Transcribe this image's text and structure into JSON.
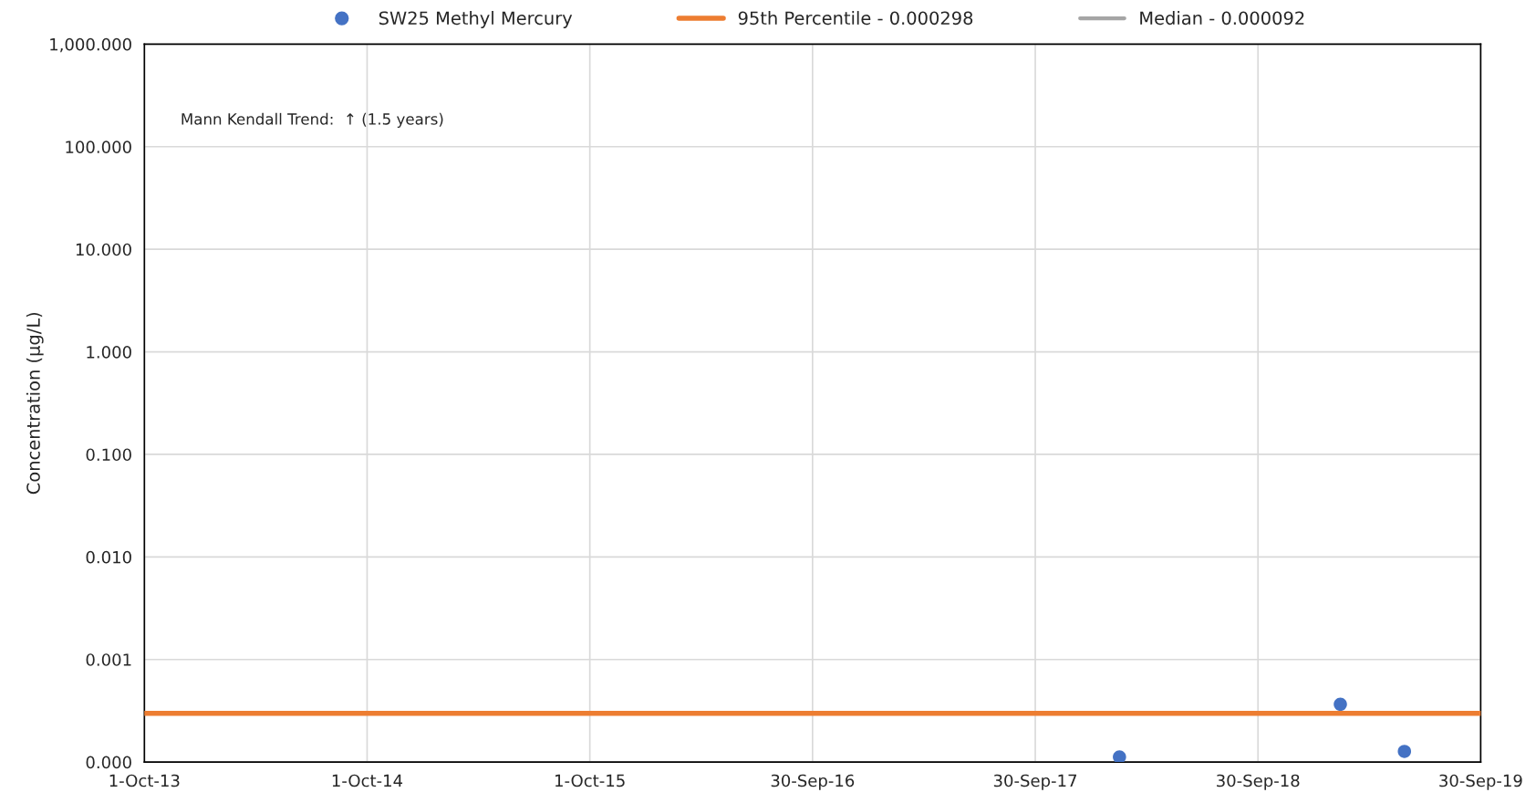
{
  "chart_data": {
    "type": "scatter",
    "ylabel": "Concentration (µg/L)",
    "log": "y",
    "grid": true,
    "legend": "top",
    "marker": "circle",
    "annotations": [
      "Mann Kendall Trend:  ↑ (1.5 years)"
    ],
    "series": [
      {
        "name": "SW25 Methyl Mercury",
        "color": "#4472c4",
        "x": [
          "2018-02-15",
          "2019-02-12",
          "2019-05-28"
        ],
        "values": [
          0.000112,
          0.000366,
          0.000127
        ]
      },
      {
        "name": "Median - 0.000092",
        "color": "#a5a5a5",
        "type": "line"
      }
    ],
    "ref_lines": [
      {
        "axis": "y",
        "value": 0.000298,
        "label": "95th Percentile - 0.000298",
        "color": "#ed7d31"
      }
    ],
    "xlim": [
      "2013-10-01",
      "2019-09-30"
    ],
    "xticks": [
      {
        "value": "2013-10-01",
        "label": "1-Oct-13"
      },
      {
        "value": "2014-10-01",
        "label": "1-Oct-14"
      },
      {
        "value": "2015-10-01",
        "label": "1-Oct-15"
      },
      {
        "value": "2016-09-30",
        "label": "30-Sep-16"
      },
      {
        "value": "2017-09-30",
        "label": "30-Sep-17"
      },
      {
        "value": "2018-09-30",
        "label": "30-Sep-18"
      },
      {
        "value": "2019-09-30",
        "label": "30-Sep-19"
      }
    ],
    "ylim": [
      0.0001,
      1000
    ],
    "yticks": [
      {
        "value": 0.0001,
        "label": "0.000"
      },
      {
        "value": 0.001,
        "label": "0.001"
      },
      {
        "value": 0.01,
        "label": "0.010"
      },
      {
        "value": 0.1,
        "label": "0.100"
      },
      {
        "value": 1,
        "label": "1.000"
      },
      {
        "value": 10,
        "label": "10.000"
      },
      {
        "value": 100,
        "label": "100.000"
      },
      {
        "value": 1000,
        "label": "1,000.000"
      }
    ]
  }
}
